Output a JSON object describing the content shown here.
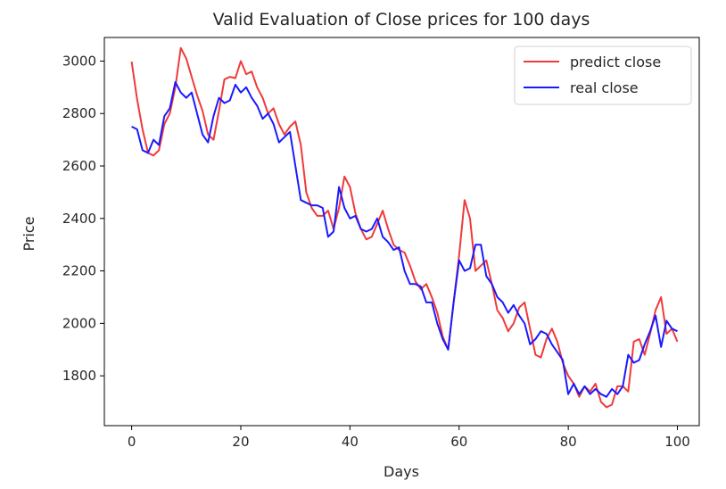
{
  "chart_data": {
    "type": "line",
    "title": "Valid Evaluation of Close prices for 100 days",
    "xlabel": "Days",
    "ylabel": "Price",
    "xlim": [
      -5,
      104
    ],
    "ylim": [
      1610,
      3090
    ],
    "xticks": [
      0,
      20,
      40,
      60,
      80,
      100
    ],
    "yticks": [
      1800,
      2000,
      2200,
      2400,
      2600,
      2800,
      3000
    ],
    "grid": false,
    "legend_position": "top-right",
    "series": [
      {
        "name": "predict close",
        "color": "#f03a3a",
        "values": [
          2998,
          2855,
          2740,
          2650,
          2640,
          2660,
          2760,
          2800,
          2900,
          3050,
          3010,
          2940,
          2870,
          2810,
          2720,
          2700,
          2810,
          2930,
          2940,
          2935,
          3000,
          2950,
          2960,
          2900,
          2860,
          2800,
          2820,
          2760,
          2720,
          2750,
          2770,
          2680,
          2500,
          2440,
          2410,
          2410,
          2430,
          2360,
          2440,
          2560,
          2520,
          2420,
          2360,
          2320,
          2330,
          2380,
          2430,
          2360,
          2300,
          2280,
          2270,
          2220,
          2160,
          2130,
          2150,
          2100,
          2040,
          1950,
          1900,
          2080,
          2260,
          2470,
          2400,
          2200,
          2220,
          2240,
          2150,
          2050,
          2020,
          1970,
          2000,
          2060,
          2080,
          1980,
          1880,
          1870,
          1940,
          1980,
          1930,
          1850,
          1800,
          1770,
          1720,
          1760,
          1740,
          1770,
          1700,
          1680,
          1690,
          1760,
          1760,
          1740,
          1930,
          1940,
          1880,
          1960,
          2050,
          2100,
          1960,
          1980,
          1930
        ]
      },
      {
        "name": "real close",
        "color": "#1a1aff",
        "values": [
          2750,
          2740,
          2660,
          2650,
          2700,
          2680,
          2790,
          2820,
          2920,
          2880,
          2860,
          2880,
          2800,
          2720,
          2690,
          2790,
          2860,
          2840,
          2850,
          2910,
          2880,
          2900,
          2860,
          2830,
          2780,
          2800,
          2760,
          2690,
          2710,
          2730,
          2600,
          2470,
          2460,
          2450,
          2450,
          2440,
          2330,
          2350,
          2520,
          2440,
          2400,
          2410,
          2360,
          2350,
          2360,
          2400,
          2330,
          2310,
          2280,
          2290,
          2200,
          2150,
          2150,
          2140,
          2080,
          2080,
          2000,
          1940,
          1900,
          2080,
          2240,
          2200,
          2210,
          2300,
          2300,
          2180,
          2150,
          2100,
          2080,
          2040,
          2070,
          2030,
          2000,
          1920,
          1940,
          1970,
          1960,
          1920,
          1890,
          1860,
          1730,
          1770,
          1730,
          1760,
          1730,
          1750,
          1730,
          1720,
          1750,
          1730,
          1760,
          1880,
          1850,
          1860,
          1920,
          1970,
          2030,
          1910,
          2010,
          1980,
          1970
        ]
      }
    ]
  }
}
